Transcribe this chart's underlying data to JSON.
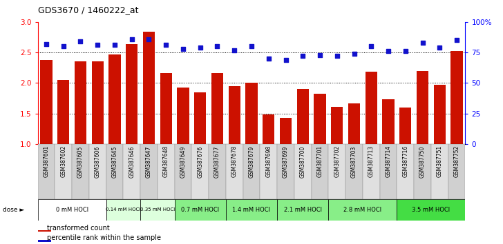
{
  "title": "GDS3670 / 1460222_at",
  "samples": [
    "GSM387601",
    "GSM387602",
    "GSM387605",
    "GSM387606",
    "GSM387645",
    "GSM387646",
    "GSM387647",
    "GSM387648",
    "GSM387649",
    "GSM387676",
    "GSM387677",
    "GSM387678",
    "GSM387679",
    "GSM387698",
    "GSM387699",
    "GSM387700",
    "GSM387701",
    "GSM387702",
    "GSM387703",
    "GSM387713",
    "GSM387714",
    "GSM387716",
    "GSM387750",
    "GSM387751",
    "GSM387752"
  ],
  "bar_values": [
    2.38,
    2.05,
    2.35,
    2.36,
    2.47,
    2.64,
    2.84,
    2.16,
    1.93,
    1.85,
    2.16,
    1.95,
    2.0,
    1.48,
    1.43,
    1.9,
    1.82,
    1.61,
    1.67,
    2.18,
    1.73,
    1.6,
    2.2,
    1.97,
    2.52
  ],
  "dot_values": [
    82,
    80,
    84,
    81,
    81,
    86,
    86,
    81,
    78,
    79,
    80,
    77,
    80,
    70,
    69,
    72,
    73,
    72,
    74,
    80,
    76,
    76,
    83,
    79,
    85
  ],
  "dose_groups": [
    {
      "label": "0 mM HOCl",
      "start": 0,
      "end": 4,
      "color": "#ffffff"
    },
    {
      "label": "0.14 mM HOCl",
      "start": 4,
      "end": 6,
      "color": "#ddffdd"
    },
    {
      "label": "0.35 mM HOCl",
      "start": 6,
      "end": 8,
      "color": "#ddffdd"
    },
    {
      "label": "0.7 mM HOCl",
      "start": 8,
      "end": 11,
      "color": "#88ee88"
    },
    {
      "label": "1.4 mM HOCl",
      "start": 11,
      "end": 14,
      "color": "#88ee88"
    },
    {
      "label": "2.1 mM HOCl",
      "start": 14,
      "end": 17,
      "color": "#88ee88"
    },
    {
      "label": "2.8 mM HOCl",
      "start": 17,
      "end": 21,
      "color": "#88ee88"
    },
    {
      "label": "3.5 mM HOCl",
      "start": 21,
      "end": 25,
      "color": "#44dd44"
    }
  ],
  "bar_color": "#cc1100",
  "dot_color": "#1111cc",
  "ylim_left": [
    1.0,
    3.0
  ],
  "ylim_right": [
    0,
    100
  ],
  "yticks_left": [
    1.0,
    1.5,
    2.0,
    2.5,
    3.0
  ],
  "yticks_right": [
    0,
    25,
    50,
    75,
    100
  ],
  "grid_lines": [
    1.5,
    2.0,
    2.5
  ],
  "legend_bar": "transformed count",
  "legend_dot": "percentile rank within the sample",
  "dose_label": "dose"
}
